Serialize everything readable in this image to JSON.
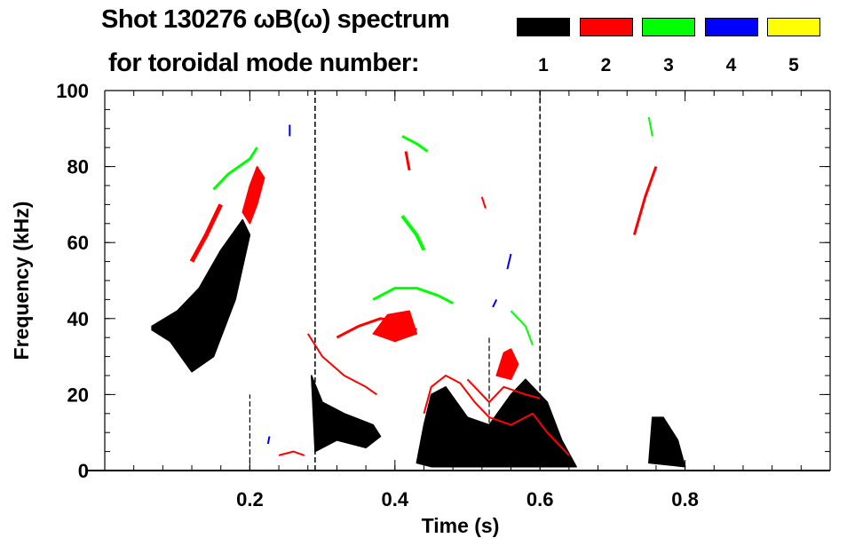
{
  "chart_data": {
    "type": "heatmap",
    "title": "Shot 130276 ωB(ω) spectrum",
    "legend_title": "for toroidal mode number:",
    "legend": [
      {
        "label": "1",
        "color": "#000000"
      },
      {
        "label": "2",
        "color": "#ff0000"
      },
      {
        "label": "3",
        "color": "#00ff00"
      },
      {
        "label": "4",
        "color": "#0000ff"
      },
      {
        "label": "5",
        "color": "#ffff00"
      }
    ],
    "legend_placement": "top-right",
    "xlabel": "Time (s)",
    "ylabel": "Frequency (kHz)",
    "xlim": [
      0,
      1.0
    ],
    "ylim": [
      0,
      100
    ],
    "xticks": [
      0.2,
      0.4,
      0.6,
      0.8
    ],
    "xtick_labels": [
      "0.2",
      "0.4",
      "0.6",
      "0.8"
    ],
    "yticks": [
      0,
      20,
      40,
      60,
      80,
      100
    ],
    "ytick_labels": [
      "0",
      "20",
      "40",
      "60",
      "80",
      "100"
    ],
    "grid": false,
    "features": [
      {
        "mode": 1,
        "kind": "blob",
        "points": [
          [
            0.065,
            38
          ],
          [
            0.1,
            42
          ],
          [
            0.13,
            48
          ],
          [
            0.16,
            58
          ],
          [
            0.19,
            66
          ],
          [
            0.2,
            62
          ],
          [
            0.18,
            45
          ],
          [
            0.15,
            30
          ],
          [
            0.12,
            26
          ],
          [
            0.09,
            34
          ],
          [
            0.065,
            37
          ]
        ]
      },
      {
        "mode": 1,
        "kind": "blob",
        "points": [
          [
            0.285,
            25
          ],
          [
            0.3,
            18
          ],
          [
            0.33,
            15
          ],
          [
            0.37,
            12
          ],
          [
            0.38,
            9
          ],
          [
            0.36,
            6
          ],
          [
            0.32,
            8
          ],
          [
            0.29,
            5
          ]
        ]
      },
      {
        "mode": 1,
        "kind": "blob",
        "points": [
          [
            0.43,
            2
          ],
          [
            0.44,
            12
          ],
          [
            0.45,
            20
          ],
          [
            0.47,
            22
          ],
          [
            0.5,
            14
          ],
          [
            0.53,
            12
          ],
          [
            0.56,
            20
          ],
          [
            0.58,
            24
          ],
          [
            0.61,
            18
          ],
          [
            0.63,
            8
          ],
          [
            0.65,
            1
          ],
          [
            0.55,
            1
          ],
          [
            0.45,
            1
          ]
        ]
      },
      {
        "mode": 1,
        "kind": "blob",
        "points": [
          [
            0.75,
            2
          ],
          [
            0.755,
            14
          ],
          [
            0.77,
            14
          ],
          [
            0.79,
            8
          ],
          [
            0.8,
            1
          ]
        ]
      },
      {
        "mode": 1,
        "kind": "line",
        "width": 1.5,
        "points": [
          [
            0.29,
            0
          ],
          [
            0.29,
            100
          ]
        ]
      },
      {
        "mode": 1,
        "kind": "line",
        "width": 1.5,
        "points": [
          [
            0.6,
            2
          ],
          [
            0.6,
            100
          ]
        ]
      },
      {
        "mode": 1,
        "kind": "line",
        "width": 1.2,
        "points": [
          [
            0.2,
            0
          ],
          [
            0.2,
            20
          ]
        ]
      },
      {
        "mode": 1,
        "kind": "line",
        "width": 1.2,
        "points": [
          [
            0.53,
            2
          ],
          [
            0.53,
            35
          ]
        ]
      },
      {
        "mode": 2,
        "kind": "line",
        "width": 5,
        "points": [
          [
            0.12,
            55
          ],
          [
            0.14,
            62
          ],
          [
            0.16,
            70
          ]
        ]
      },
      {
        "mode": 2,
        "kind": "blob",
        "points": [
          [
            0.19,
            68
          ],
          [
            0.2,
            75
          ],
          [
            0.21,
            80
          ],
          [
            0.22,
            77
          ],
          [
            0.21,
            70
          ],
          [
            0.2,
            65
          ]
        ]
      },
      {
        "mode": 2,
        "kind": "line",
        "width": 2,
        "points": [
          [
            0.28,
            36
          ],
          [
            0.3,
            30
          ],
          [
            0.33,
            25
          ],
          [
            0.36,
            22
          ],
          [
            0.375,
            20
          ]
        ]
      },
      {
        "mode": 2,
        "kind": "line",
        "width": 3,
        "points": [
          [
            0.32,
            35
          ],
          [
            0.35,
            38
          ],
          [
            0.38,
            40
          ],
          [
            0.41,
            39
          ],
          [
            0.43,
            37
          ]
        ]
      },
      {
        "mode": 2,
        "kind": "blob",
        "points": [
          [
            0.37,
            36
          ],
          [
            0.39,
            41
          ],
          [
            0.42,
            42
          ],
          [
            0.43,
            36
          ],
          [
            0.4,
            34
          ]
        ]
      },
      {
        "mode": 2,
        "kind": "line",
        "width": 2,
        "points": [
          [
            0.44,
            15
          ],
          [
            0.45,
            22
          ],
          [
            0.47,
            25
          ],
          [
            0.49,
            23
          ],
          [
            0.51,
            18
          ],
          [
            0.53,
            14
          ],
          [
            0.56,
            12
          ],
          [
            0.59,
            15
          ],
          [
            0.61,
            10
          ],
          [
            0.64,
            4
          ]
        ]
      },
      {
        "mode": 2,
        "kind": "line",
        "width": 2,
        "points": [
          [
            0.5,
            24
          ],
          [
            0.53,
            18
          ],
          [
            0.55,
            22
          ],
          [
            0.58,
            20
          ],
          [
            0.6,
            19
          ]
        ]
      },
      {
        "mode": 2,
        "kind": "blob",
        "points": [
          [
            0.54,
            25
          ],
          [
            0.55,
            31
          ],
          [
            0.56,
            32
          ],
          [
            0.57,
            28
          ],
          [
            0.56,
            24
          ]
        ]
      },
      {
        "mode": 2,
        "kind": "line",
        "width": 3,
        "points": [
          [
            0.415,
            84
          ],
          [
            0.42,
            79
          ]
        ]
      },
      {
        "mode": 2,
        "kind": "line",
        "width": 3,
        "points": [
          [
            0.73,
            62
          ],
          [
            0.745,
            72
          ],
          [
            0.76,
            80
          ]
        ]
      },
      {
        "mode": 2,
        "kind": "line",
        "width": 2,
        "points": [
          [
            0.52,
            72
          ],
          [
            0.525,
            69
          ]
        ]
      },
      {
        "mode": 2,
        "kind": "line",
        "width": 2,
        "points": [
          [
            0.24,
            4
          ],
          [
            0.26,
            5
          ],
          [
            0.275,
            4
          ]
        ]
      },
      {
        "mode": 3,
        "kind": "line",
        "width": 3,
        "points": [
          [
            0.15,
            74
          ],
          [
            0.17,
            78
          ],
          [
            0.2,
            82
          ],
          [
            0.21,
            85
          ]
        ]
      },
      {
        "mode": 3,
        "kind": "line",
        "width": 3,
        "points": [
          [
            0.37,
            45
          ],
          [
            0.4,
            48
          ],
          [
            0.43,
            48
          ],
          [
            0.46,
            46
          ],
          [
            0.48,
            44
          ]
        ]
      },
      {
        "mode": 3,
        "kind": "line",
        "width": 4,
        "points": [
          [
            0.41,
            67
          ],
          [
            0.43,
            62
          ],
          [
            0.44,
            58
          ]
        ]
      },
      {
        "mode": 3,
        "kind": "line",
        "width": 3,
        "points": [
          [
            0.41,
            88
          ],
          [
            0.43,
            86
          ],
          [
            0.445,
            84
          ]
        ]
      },
      {
        "mode": 3,
        "kind": "line",
        "width": 2,
        "points": [
          [
            0.56,
            42
          ],
          [
            0.58,
            38
          ],
          [
            0.59,
            33
          ]
        ]
      },
      {
        "mode": 3,
        "kind": "line",
        "width": 2,
        "points": [
          [
            0.75,
            93
          ],
          [
            0.755,
            88
          ]
        ]
      },
      {
        "mode": 4,
        "kind": "line",
        "width": 2,
        "points": [
          [
            0.255,
            88
          ],
          [
            0.255,
            91
          ]
        ]
      },
      {
        "mode": 4,
        "kind": "line",
        "width": 2,
        "points": [
          [
            0.555,
            53
          ],
          [
            0.56,
            57
          ]
        ]
      },
      {
        "mode": 4,
        "kind": "line",
        "width": 2,
        "points": [
          [
            0.535,
            43
          ],
          [
            0.54,
            45
          ]
        ]
      },
      {
        "mode": 4,
        "kind": "line",
        "width": 2,
        "points": [
          [
            0.225,
            7
          ],
          [
            0.227,
            9
          ]
        ]
      }
    ]
  }
}
